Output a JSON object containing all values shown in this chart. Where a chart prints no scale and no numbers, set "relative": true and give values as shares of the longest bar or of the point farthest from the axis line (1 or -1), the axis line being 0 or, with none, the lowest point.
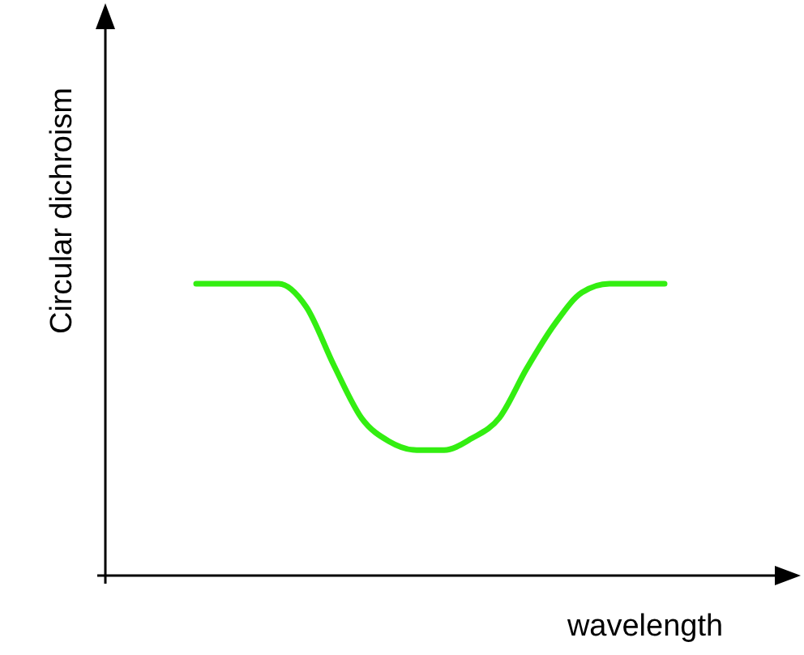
{
  "chart_data": {
    "type": "line",
    "relative": true,
    "xlabel": "wavelength",
    "ylabel": "Circular dichroism",
    "categories": [
      null,
      null,
      null,
      null,
      null,
      null,
      null,
      null,
      null,
      null,
      null,
      null,
      null,
      null,
      null,
      null,
      null,
      null,
      null,
      null,
      null,
      null,
      null,
      null,
      null
    ],
    "series": [
      {
        "color": "#33ee11",
        "values": [
          null,
          null,
          null,
          1.0,
          1.0,
          1.0,
          1.0,
          0.92,
          0.72,
          0.54,
          0.46,
          0.43,
          0.43,
          0.47,
          0.54,
          0.71,
          0.86,
          0.97,
          1.0,
          1.0,
          1.0,
          null,
          null,
          null,
          null
        ]
      }
    ]
  }
}
